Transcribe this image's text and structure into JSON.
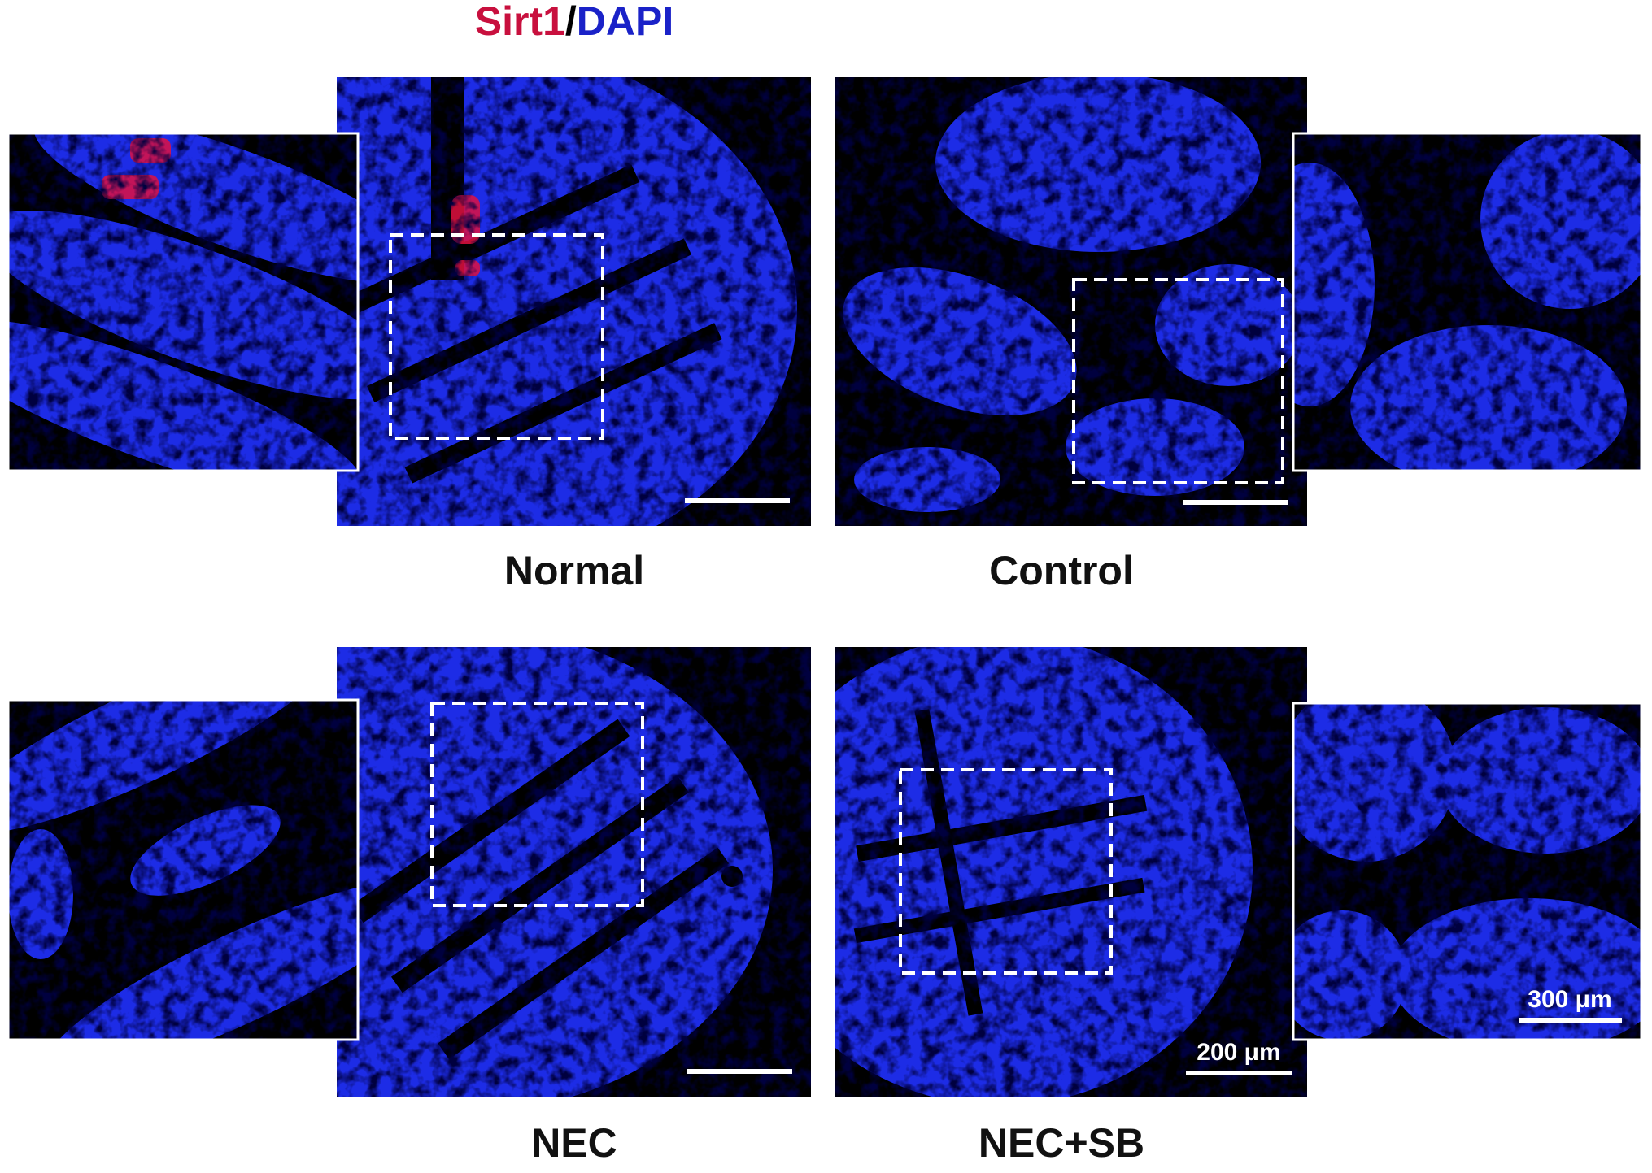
{
  "title": {
    "marker": "Sirt1",
    "separator": "/",
    "stain": "DAPI"
  },
  "panels": [
    {
      "label": "Normal"
    },
    {
      "label": "Control"
    },
    {
      "label": "NEC"
    },
    {
      "label": "NEC+SB",
      "scale_bar": "200 μm",
      "inset_scale_bar": "300 μm"
    }
  ]
}
